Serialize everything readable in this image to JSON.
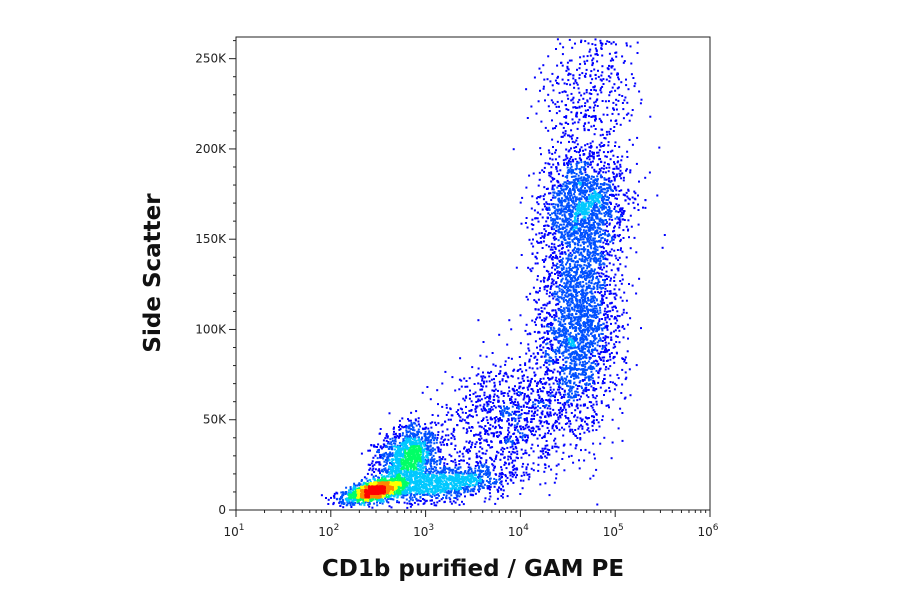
{
  "chart_data": {
    "type": "scatter",
    "style": "flow-cytometry density dot plot (pseudocolor: blue = low, green/yellow = mid, red = high density)",
    "xlabel": "CD1b purified / GAM PE",
    "ylabel": "Side Scatter",
    "x_scale": "log",
    "xlim": [
      10,
      1000000
    ],
    "ylim": [
      0,
      262000
    ],
    "x_ticks": [
      {
        "value": 10,
        "base": "10",
        "exp": "1"
      },
      {
        "value": 100,
        "base": "10",
        "exp": "2"
      },
      {
        "value": 1000,
        "base": "10",
        "exp": "3"
      },
      {
        "value": 10000,
        "base": "10",
        "exp": "4"
      },
      {
        "value": 100000,
        "base": "10",
        "exp": "5"
      },
      {
        "value": 1000000,
        "base": "10",
        "exp": "6"
      }
    ],
    "y_ticks": [
      {
        "value": 0,
        "label": "0"
      },
      {
        "value": 50000,
        "label": "50K"
      },
      {
        "value": 100000,
        "label": "100K"
      },
      {
        "value": 150000,
        "label": "150K"
      },
      {
        "value": 200000,
        "label": "200K"
      },
      {
        "value": 250000,
        "label": "250K"
      }
    ],
    "grid": false,
    "legend": "none",
    "density_colors": [
      "#0000ff",
      "#0050ff",
      "#00c8ff",
      "#00ff66",
      "#ffff00",
      "#ff8800",
      "#ff0000"
    ],
    "populations": [
      {
        "x": 280,
        "y": 11000,
        "count": 1300
      },
      {
        "x": 650,
        "y": 30000,
        "count": 1300
      },
      {
        "x": 1500,
        "y": 15000,
        "count": 1000
      },
      {
        "x": 7000,
        "y": 50000,
        "count": 1000
      },
      {
        "x": 40000,
        "y": 105000,
        "count": 2400
      },
      {
        "x": 45000,
        "y": 170000,
        "count": 1500
      },
      {
        "x": 50000,
        "y": 235000,
        "count": 500
      }
    ]
  }
}
